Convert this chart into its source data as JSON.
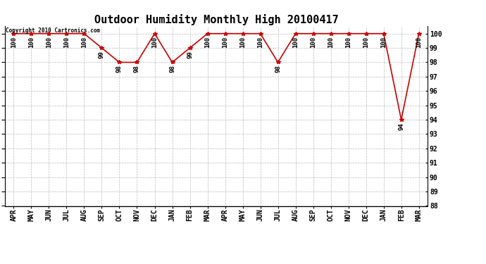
{
  "title": "Outdoor Humidity Monthly High 20100417",
  "copyright": "Copyright 2010 Cartronics.com",
  "months": [
    "APR",
    "MAY",
    "JUN",
    "JUL",
    "AUG",
    "SEP",
    "OCT",
    "NOV",
    "DEC",
    "JAN",
    "FEB",
    "MAR",
    "APR",
    "MAY",
    "JUN",
    "JUL",
    "AUG",
    "SEP",
    "OCT",
    "NOV",
    "DEC",
    "JAN",
    "FEB",
    "MAR"
  ],
  "values": [
    100,
    100,
    100,
    100,
    100,
    99,
    98,
    98,
    100,
    98,
    99,
    100,
    100,
    100,
    100,
    98,
    100,
    100,
    100,
    100,
    100,
    100,
    94,
    100
  ],
  "ylim": [
    88,
    100.5
  ],
  "yticks": [
    88,
    89,
    90,
    91,
    92,
    93,
    94,
    95,
    96,
    97,
    98,
    99,
    100
  ],
  "line_color": "#cc0000",
  "marker_color": "#cc0000",
  "bg_color": "#ffffff",
  "grid_color": "#bbbbbb",
  "title_fontsize": 11,
  "tick_fontsize": 7,
  "annotation_fontsize": 6.5,
  "copyright_fontsize": 5.5
}
